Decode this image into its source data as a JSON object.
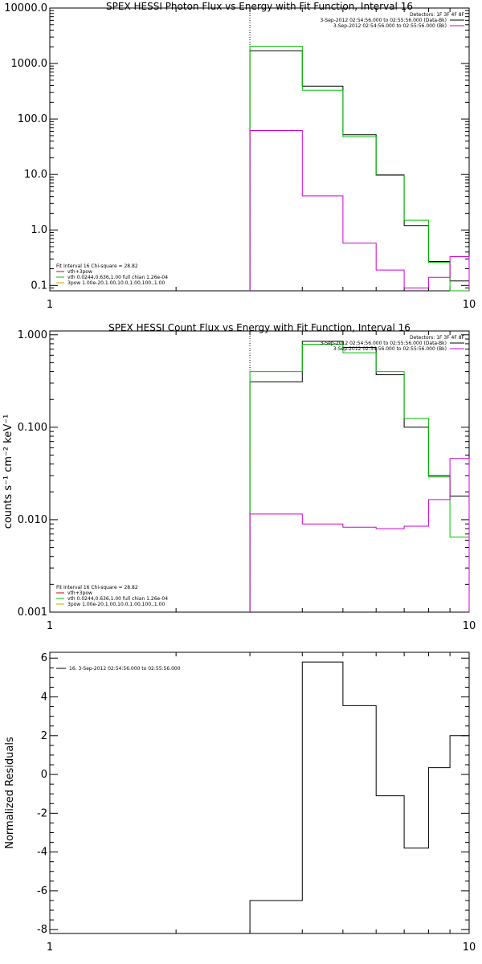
{
  "chart_data": [
    {
      "type": "line",
      "title": "SPEX HESSI Photon Flux vs Energy with Fit Function, Interval 16",
      "xlabel": "",
      "ylabel": "",
      "xscale": "log",
      "yscale": "log",
      "xlim": [
        1,
        10
      ],
      "ylim": [
        0.08,
        10000
      ],
      "x_ticks": [
        "1",
        "10"
      ],
      "y_ticks": [
        {
          "value": 0.1,
          "label": "0.1"
        },
        {
          "value": 1,
          "label": "1.0"
        },
        {
          "value": 10,
          "label": "10.0"
        },
        {
          "value": 100,
          "label": "100.0"
        },
        {
          "value": 1000,
          "label": "1000.0"
        },
        {
          "value": 10000,
          "label": "10000.0"
        }
      ],
      "vline_x": 3,
      "legend_top_right": [
        {
          "text": "Detectors: 1F 3F 4F 8F",
          "color": ""
        },
        {
          "text": "3-Sep-2012 02:54:56.000 to 02:55:56.000 (Data-Bk)",
          "color": "#000000"
        },
        {
          "text": "3-Sep-2012 02:54:56.000 to 02:55:56.000 (Bk)",
          "color": "#d000d0"
        }
      ],
      "legend_bottom_left": [
        {
          "text": "Fit Interval 16    Chi-square = 28.82",
          "color": "#000000"
        },
        {
          "text": "vth+3pow",
          "color": "#d00000"
        },
        {
          "text": "vth 0.0244,0.636,1.00  full chian 1.26e-04",
          "color": "#00c000"
        },
        {
          "text": "3pow 1.00e-20,1.00,10.0,1.00,100.,1.00",
          "color": "#c8a000"
        }
      ],
      "series": [
        {
          "color": "#000000",
          "edges": [
            3,
            4,
            5,
            6,
            7,
            8,
            9,
            10
          ],
          "values": [
            1700,
            390,
            52,
            9.8,
            1.2,
            0.27,
            0.12
          ]
        },
        {
          "color": "#00c000",
          "edges": [
            3,
            4,
            5,
            6,
            7,
            8,
            9,
            10
          ],
          "values": [
            2050,
            330,
            48,
            9.6,
            1.5,
            0.26,
            0.08
          ]
        },
        {
          "color": "#d000d0",
          "edges": [
            3,
            4,
            5,
            6,
            7,
            8,
            9,
            10
          ],
          "values": [
            62,
            4.1,
            0.58,
            0.19,
            0.09,
            0.14,
            0.33
          ]
        }
      ]
    },
    {
      "type": "line",
      "title": "SPEX HESSI Count Flux vs Energy with Fit Function, Interval 16",
      "xlabel": "",
      "ylabel": "counts s⁻¹ cm⁻² keV⁻¹",
      "xscale": "log",
      "yscale": "log",
      "xlim": [
        1,
        10
      ],
      "ylim": [
        0.001,
        1.1
      ],
      "x_ticks": [
        "1",
        "10"
      ],
      "y_ticks": [
        {
          "value": 0.001,
          "label": "0.001"
        },
        {
          "value": 0.01,
          "label": "0.010"
        },
        {
          "value": 0.1,
          "label": "0.100"
        },
        {
          "value": 1,
          "label": "1.000"
        }
      ],
      "vline_x": 3,
      "legend_top_right": [
        {
          "text": "Detectors: 1F 3F 4F 8F",
          "color": ""
        },
        {
          "text": "3-Sep-2012 02:54:56.000 to 02:55:56.000 (Data-Bk)",
          "color": "#000000"
        },
        {
          "text": "3-Sep-2012 02:54:56.000 to 02:55:56.000 (Bk)",
          "color": "#d000d0"
        }
      ],
      "legend_bottom_left": [
        {
          "text": "Fit Interval 16    Chi-square = 28.82",
          "color": "#000000"
        },
        {
          "text": "vth+3pow",
          "color": "#d00000"
        },
        {
          "text": "vth 0.0244,0.636,1.00  full chian 1.26e-04",
          "color": "#00c000"
        },
        {
          "text": "3pow 1.00e-20,1.00,10.0,1.00,100.,1.00",
          "color": "#c8a000"
        }
      ],
      "series": [
        {
          "color": "#000000",
          "edges": [
            3,
            4,
            5,
            6,
            7,
            8,
            9,
            10
          ],
          "values": [
            0.31,
            0.85,
            0.73,
            0.37,
            0.1,
            0.03,
            0.018
          ]
        },
        {
          "color": "#00c000",
          "edges": [
            3,
            4,
            5,
            6,
            7,
            8,
            9,
            10
          ],
          "values": [
            0.4,
            0.79,
            0.64,
            0.4,
            0.125,
            0.029,
            0.0065
          ]
        },
        {
          "color": "#d000d0",
          "edges": [
            3,
            4,
            5,
            6,
            7,
            8,
            9,
            10
          ],
          "values": [
            0.0115,
            0.009,
            0.0083,
            0.008,
            0.0085,
            0.0165,
            0.046
          ]
        }
      ]
    },
    {
      "type": "line",
      "title": "",
      "xlabel": "",
      "ylabel": "Normalized Residuals",
      "xscale": "log",
      "yscale": "linear",
      "xlim": [
        1,
        10
      ],
      "ylim": [
        -8.2,
        6.3
      ],
      "x_ticks": [
        "1",
        "10"
      ],
      "y_ticks": [
        {
          "value": -8,
          "label": "-8"
        },
        {
          "value": -6,
          "label": "-6"
        },
        {
          "value": -4,
          "label": "-4"
        },
        {
          "value": -2,
          "label": "-2"
        },
        {
          "value": 0,
          "label": "0"
        },
        {
          "value": 2,
          "label": "2"
        },
        {
          "value": 4,
          "label": "4"
        },
        {
          "value": 6,
          "label": "6"
        }
      ],
      "legend_top_left": [
        {
          "text": "16.  3-Sep-2012 02:54:56.000 to 02:55:56.000",
          "color": "#000000"
        }
      ],
      "series": [
        {
          "color": "#000000",
          "edges": [
            3,
            4,
            5,
            6,
            7,
            8,
            9,
            10
          ],
          "values": [
            -6.5,
            5.8,
            3.55,
            -1.1,
            -3.8,
            0.35,
            2.0
          ]
        }
      ]
    }
  ]
}
